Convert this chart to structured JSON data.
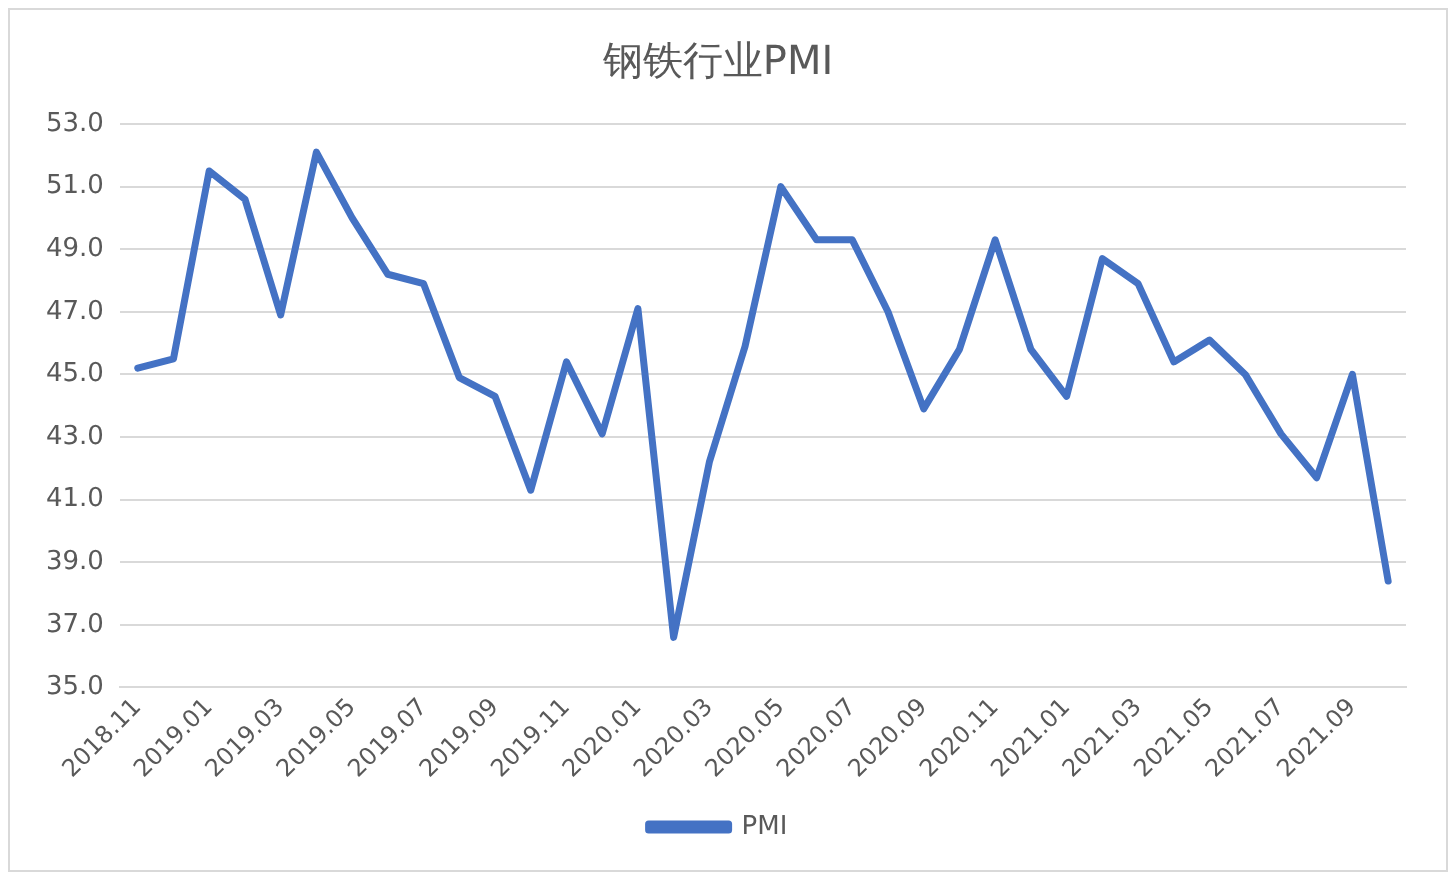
{
  "chart_data": {
    "type": "line",
    "title": "钢铁行业PMI",
    "categories": [
      "2018.11",
      null,
      "2019.01",
      null,
      "2019.03",
      null,
      "2019.05",
      null,
      "2019.07",
      null,
      "2019.09",
      null,
      "2019.11",
      null,
      "2020.01",
      null,
      "2020.03",
      null,
      "2020.05",
      null,
      "2020.07",
      null,
      "2020.09",
      null,
      "2020.11",
      null,
      "2021.01",
      null,
      "2021.03",
      null,
      "2021.05",
      null,
      "2021.07",
      null,
      "2021.09",
      null
    ],
    "series": [
      {
        "name": "PMI",
        "color": "#4472c4",
        "values": [
          45.2,
          45.5,
          51.5,
          50.6,
          46.9,
          52.1,
          50.0,
          48.2,
          47.9,
          44.9,
          44.3,
          41.3,
          45.4,
          43.1,
          47.1,
          36.6,
          42.2,
          45.9,
          51.0,
          49.3,
          49.3,
          47.0,
          43.9,
          45.8,
          49.3,
          45.8,
          44.3,
          48.7,
          47.9,
          45.4,
          46.1,
          45.0,
          43.1,
          41.7,
          45.0,
          38.4
        ]
      }
    ],
    "ylim": [
      35,
      53
    ],
    "yticks": [
      {
        "value": 35,
        "label": "35.0"
      },
      {
        "value": 37,
        "label": "37.0"
      },
      {
        "value": 39,
        "label": "39.0"
      },
      {
        "value": 41,
        "label": "41.0"
      },
      {
        "value": 43,
        "label": "43.0"
      },
      {
        "value": 45,
        "label": "45.0"
      },
      {
        "value": 47,
        "label": "47.0"
      },
      {
        "value": 49,
        "label": "49.0"
      },
      {
        "value": 51,
        "label": "51.0"
      },
      {
        "value": 53,
        "label": "53.0"
      }
    ],
    "grid": "y",
    "legend": "bottom",
    "marker": "none",
    "line_style": "solid"
  }
}
